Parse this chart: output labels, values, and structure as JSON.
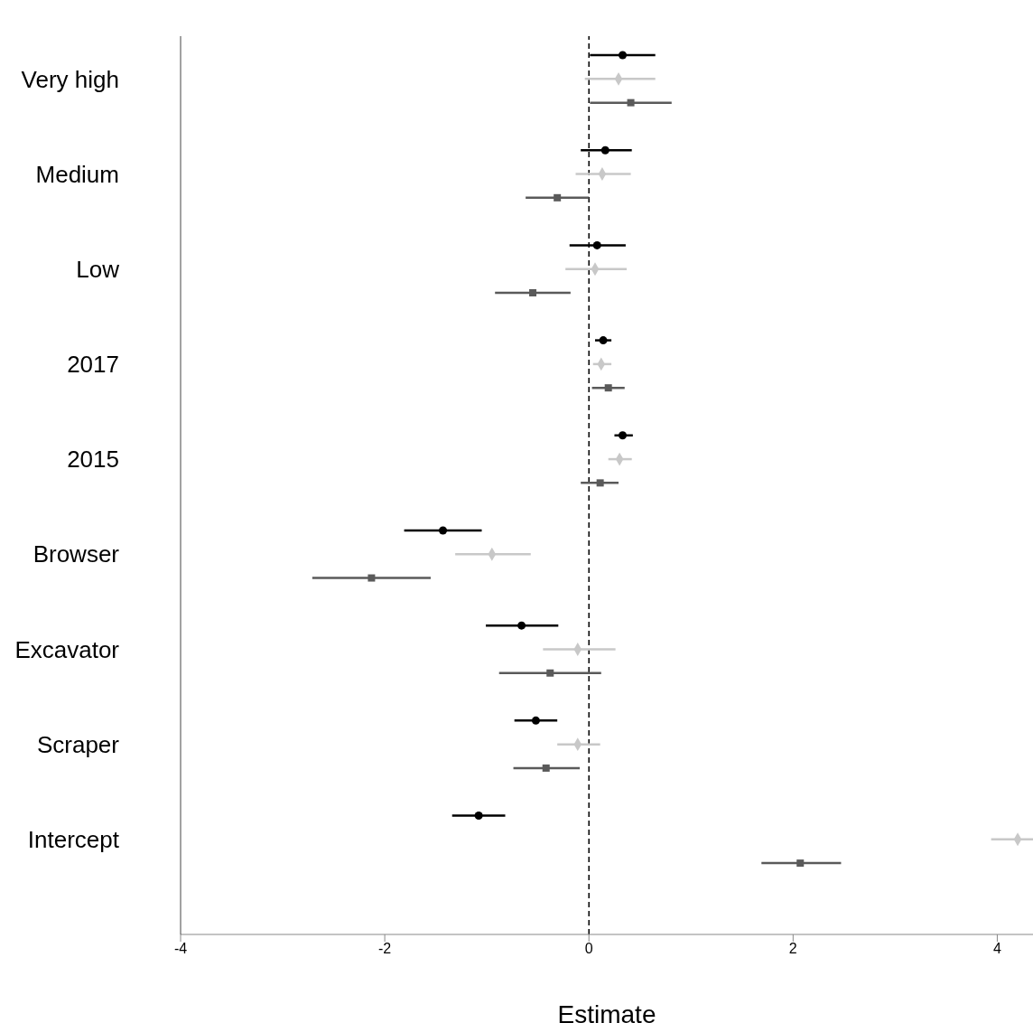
{
  "chart_data": {
    "type": "scatter",
    "orientation": "horizontal",
    "xlabel": "Estimate",
    "categories": [
      "Very high",
      "Medium",
      "Low",
      "2017",
      "2015",
      "Browser",
      "Excavator",
      "Scraper",
      "Intercept"
    ],
    "xlim": [
      -4,
      4.35
    ],
    "xticks": [
      -4,
      -2,
      0,
      2,
      4
    ],
    "grid": false,
    "legend": false,
    "ref_lines": [
      {
        "axis": "x",
        "value": 0,
        "color": "#000000",
        "line_style": "dashed"
      }
    ],
    "series": [
      {
        "color": "#000000",
        "marker": "circle",
        "values": [
          0.33,
          0.16,
          0.08,
          0.14,
          0.33,
          -1.43,
          -0.66,
          -0.52,
          -1.08
        ],
        "errors": [
          [
            0.01,
            0.65
          ],
          [
            -0.08,
            0.42
          ],
          [
            -0.19,
            0.36
          ],
          [
            0.06,
            0.22
          ],
          [
            0.25,
            0.43
          ],
          [
            -1.81,
            -1.05
          ],
          [
            -1.01,
            -0.3
          ],
          [
            -0.73,
            -0.31
          ],
          [
            -1.34,
            -0.82
          ]
        ]
      },
      {
        "color": "#c8c8c8",
        "marker": "diamond",
        "values": [
          0.29,
          0.13,
          0.06,
          0.12,
          0.3,
          -0.95,
          -0.11,
          -0.11,
          4.2
        ],
        "errors": [
          [
            -0.04,
            0.65
          ],
          [
            -0.13,
            0.41
          ],
          [
            -0.23,
            0.37
          ],
          [
            0.04,
            0.22
          ],
          [
            0.19,
            0.42
          ],
          [
            -1.31,
            -0.57
          ],
          [
            -0.45,
            0.26
          ],
          [
            -0.31,
            0.11
          ],
          [
            3.94,
            4.35
          ]
        ]
      },
      {
        "color": "#5a5a5a",
        "marker": "square",
        "values": [
          0.41,
          -0.31,
          -0.55,
          0.19,
          0.11,
          -2.13,
          -0.38,
          -0.42,
          2.07
        ],
        "errors": [
          [
            0.01,
            0.81
          ],
          [
            -0.62,
            0.0
          ],
          [
            -0.92,
            -0.18
          ],
          [
            0.03,
            0.35
          ],
          [
            -0.08,
            0.29
          ],
          [
            -2.71,
            -1.55
          ],
          [
            -0.88,
            0.12
          ],
          [
            -0.74,
            -0.09
          ],
          [
            1.69,
            2.47
          ]
        ]
      }
    ]
  }
}
